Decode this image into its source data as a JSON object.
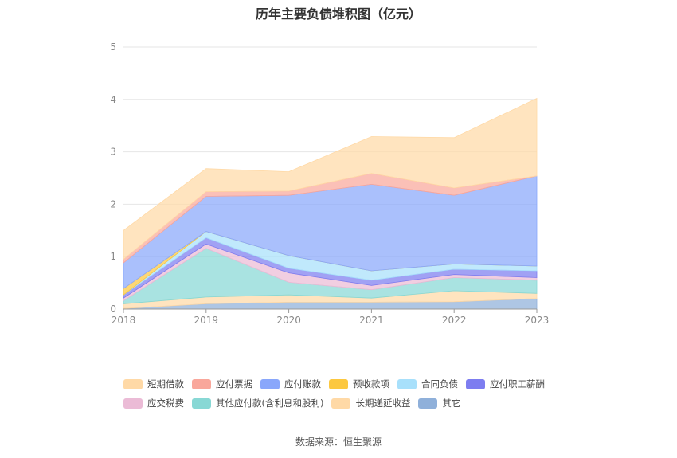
{
  "title": "历年主要负债堆积图（亿元）",
  "source_label": "数据来源：恒生聚源",
  "chart_data": {
    "type": "area",
    "stacked": true,
    "title": "历年主要负债堆积图（亿元）",
    "xlabel": "",
    "ylabel": "",
    "ylim": [
      0,
      5
    ],
    "yticks": [
      0,
      1,
      2,
      3,
      4,
      5
    ],
    "grid": true,
    "legend_position": "bottom",
    "x": [
      "2018",
      "2019",
      "2020",
      "2021",
      "2022",
      "2023"
    ],
    "series": [
      {
        "name": "其它",
        "color": "#8fb0da",
        "values": [
          0.01,
          0.1,
          0.13,
          0.13,
          0.14,
          0.2
        ]
      },
      {
        "name": "长期递延收益",
        "color": "#ffd9a6",
        "values": [
          0.09,
          0.13,
          0.14,
          0.08,
          0.21,
          0.1
        ]
      },
      {
        "name": "其他应付款(含利息和股利)",
        "color": "#88d8d5",
        "values": [
          0.06,
          0.93,
          0.24,
          0.16,
          0.25,
          0.25
        ]
      },
      {
        "name": "应交税费",
        "color": "#ebbbd6",
        "values": [
          0.05,
          0.08,
          0.18,
          0.08,
          0.06,
          0.05
        ]
      },
      {
        "name": "应付职工薪酬",
        "color": "#7d7df0",
        "values": [
          0.06,
          0.12,
          0.09,
          0.1,
          0.1,
          0.13
        ]
      },
      {
        "name": "合同负债",
        "color": "#a8e0fb",
        "values": [
          0.0,
          0.12,
          0.24,
          0.18,
          0.1,
          0.09
        ]
      },
      {
        "name": "预收款项",
        "color": "#fcc840",
        "values": [
          0.12,
          0.0,
          0.0,
          0.0,
          0.0,
          0.0
        ]
      },
      {
        "name": "应付账款",
        "color": "#89a7fb",
        "values": [
          0.49,
          0.67,
          1.15,
          1.65,
          1.31,
          1.72
        ]
      },
      {
        "name": "应付票据",
        "color": "#f9a79b",
        "values": [
          0.07,
          0.09,
          0.08,
          0.21,
          0.14,
          0.0
        ]
      },
      {
        "name": "短期借款",
        "color": "#ffd9a6",
        "values": [
          0.55,
          0.44,
          0.37,
          0.7,
          0.96,
          1.48
        ]
      }
    ]
  },
  "legend": {
    "rows": [
      [
        {
          "label": "短期借款",
          "color": "#ffd9a6"
        },
        {
          "label": "应付票据",
          "color": "#f9a79b"
        },
        {
          "label": "应付账款",
          "color": "#89a7fb"
        },
        {
          "label": "预收款项",
          "color": "#fcc840"
        },
        {
          "label": "合同负债",
          "color": "#a8e0fb"
        },
        {
          "label": "应付职工薪酬",
          "color": "#7d7df0"
        }
      ],
      [
        {
          "label": "应交税费",
          "color": "#ebbbd6"
        },
        {
          "label": "其他应付款(含利息和股利)",
          "color": "#88d8d5"
        },
        {
          "label": "长期递延收益",
          "color": "#ffd9a6"
        },
        {
          "label": "其它",
          "color": "#8fb0da"
        }
      ]
    ]
  }
}
